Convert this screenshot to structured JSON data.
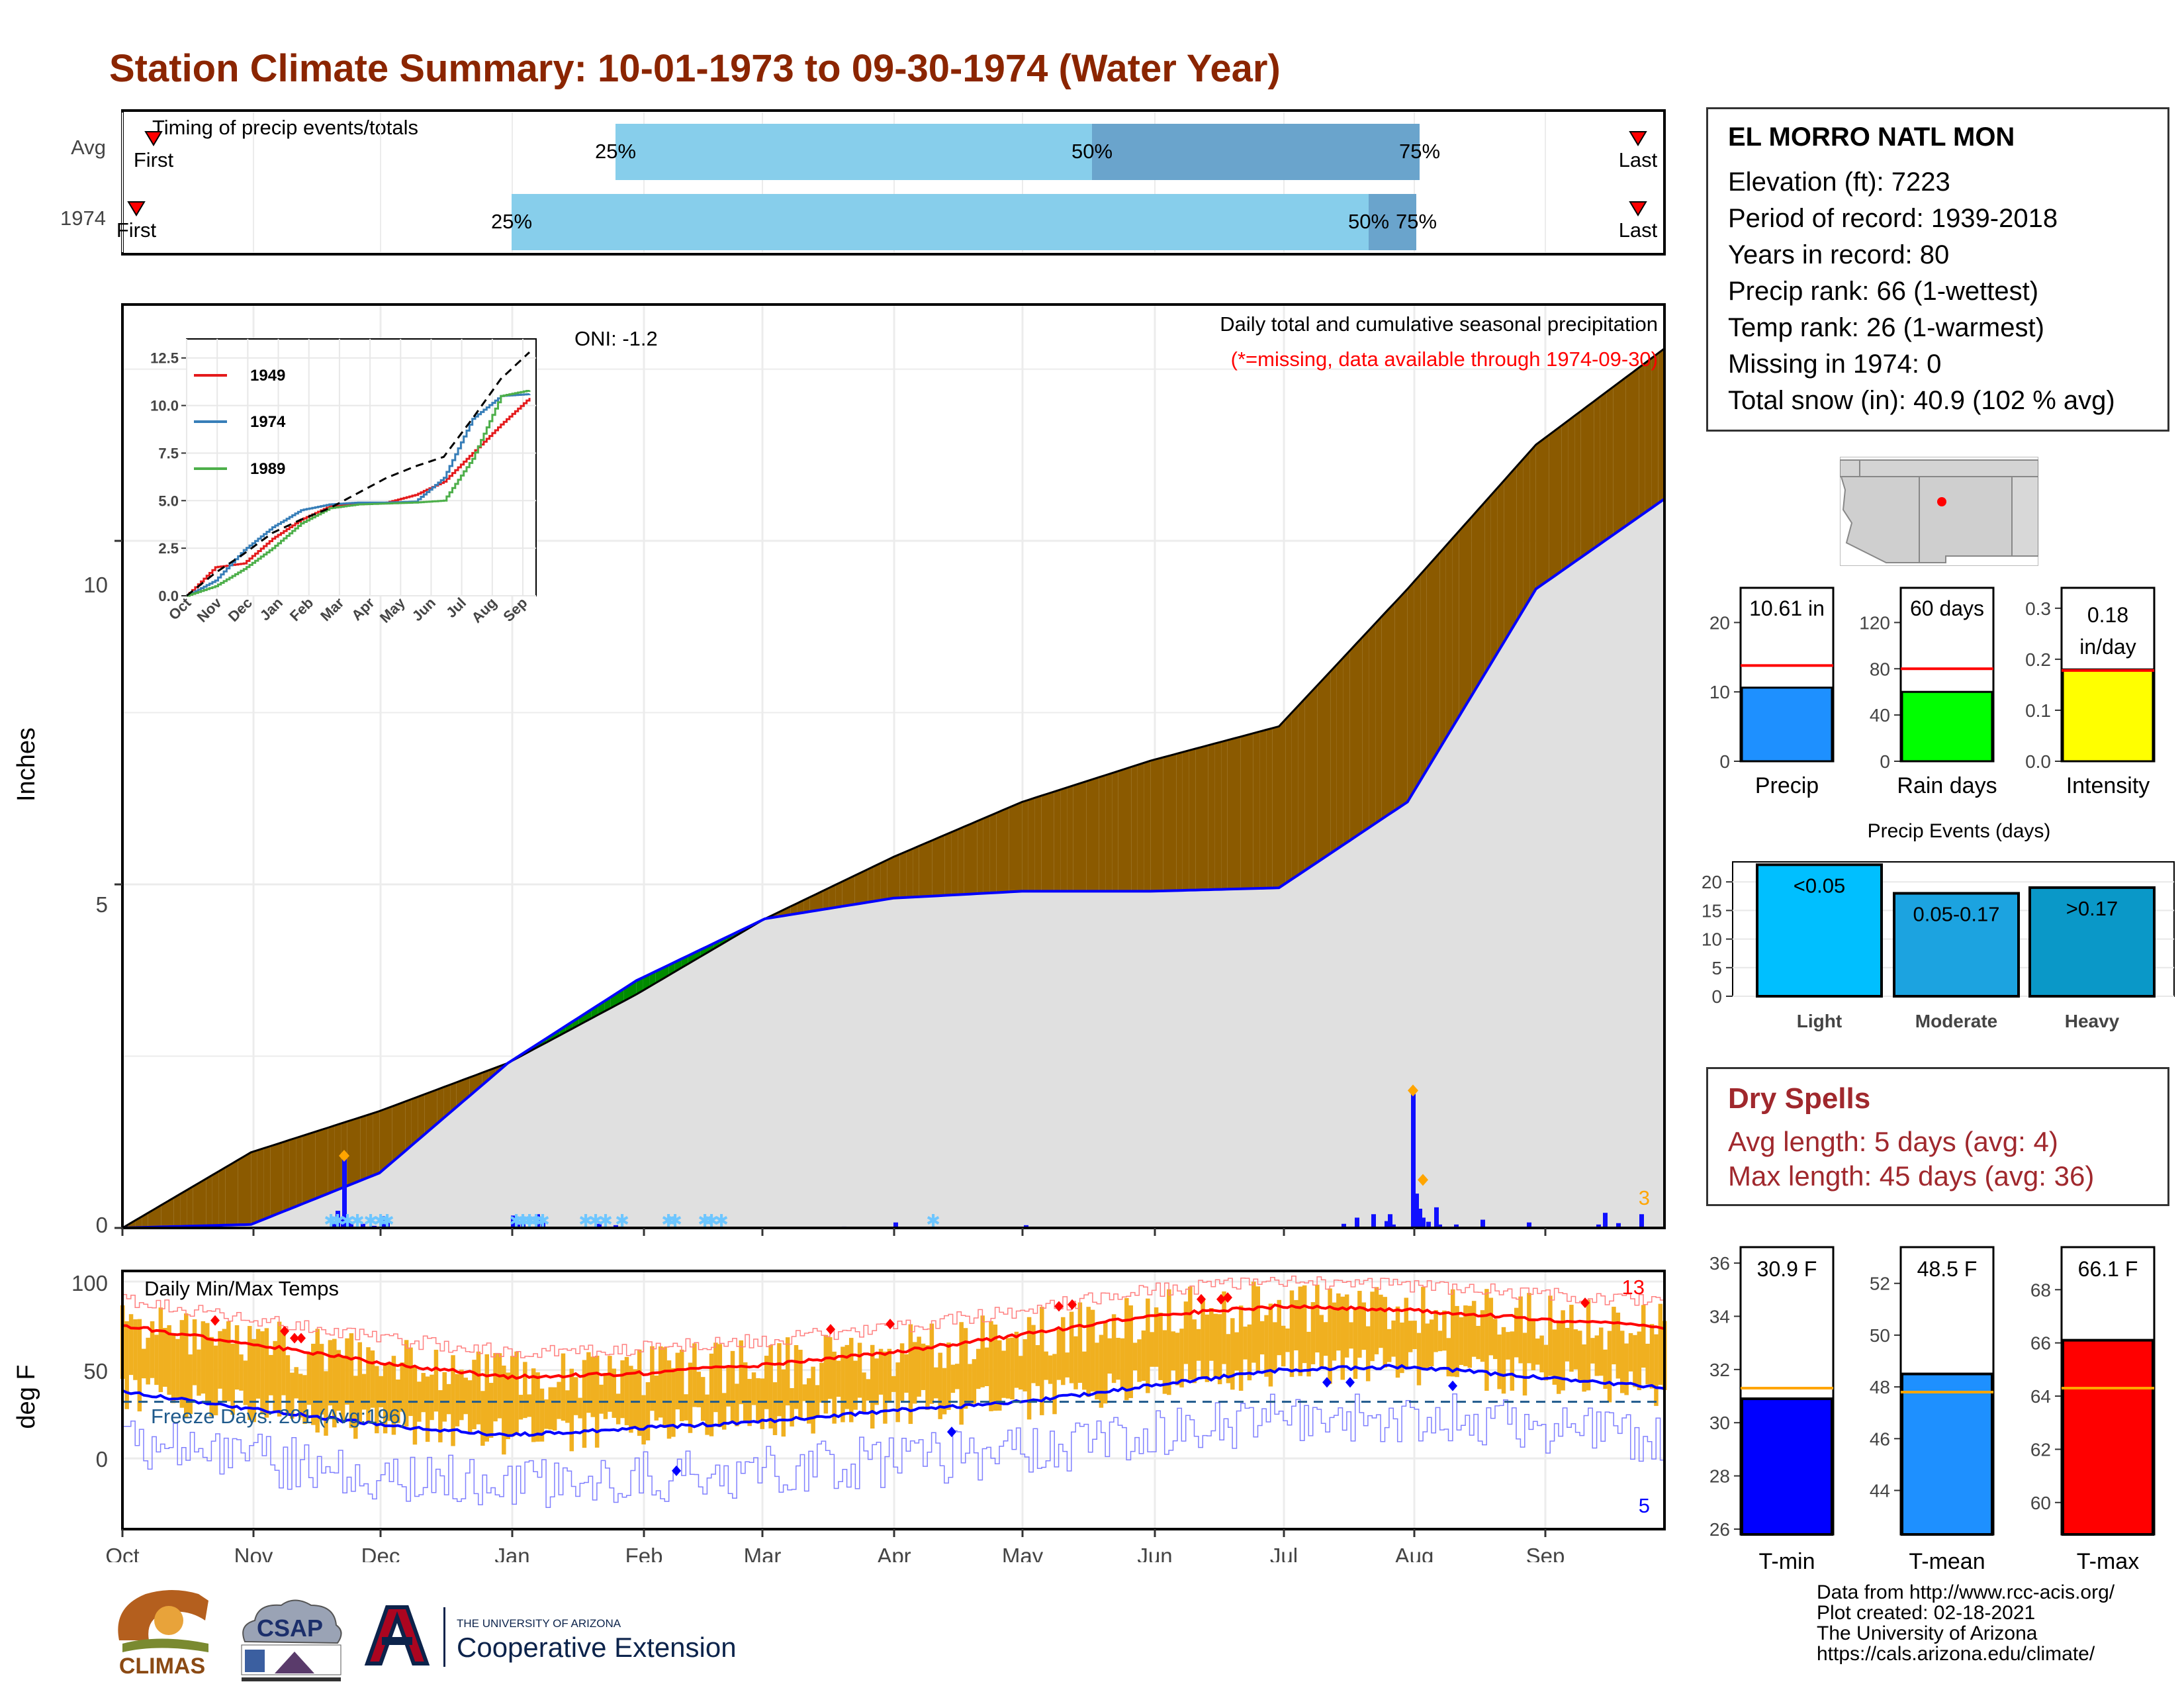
{
  "title": "Station Climate Summary: 10-01-1973 to 09-30-1974 (Water Year)",
  "colors": {
    "title": "#8b2500",
    "brown": "#8b5a00",
    "green": "#008b00",
    "blue_line": "#0000ff",
    "light_blue": "#87ceeb",
    "mid_blue": "#6aa4cc",
    "orange_bar": "#f0b020",
    "red": "#ff0000"
  },
  "timing": {
    "title": "Timing of precip events/totals",
    "rows": [
      {
        "label": "Avg",
        "first_label": "First",
        "last_label": "Last",
        "p25": "25%",
        "p50": "50%",
        "p75": "75%"
      },
      {
        "label": "1974",
        "first_label": "First",
        "last_label": "Last",
        "p25": "25%",
        "p50": "50%",
        "p75": "75%"
      }
    ]
  },
  "precip_panel": {
    "ylabel": "Inches",
    "yticks": [
      "0",
      "5",
      "10"
    ],
    "oni": "ONI: -1.2",
    "subtitle": "Daily total and cumulative seasonal precipitation",
    "missing_note": "(*=missing, data available through 1974-09-30)",
    "max_count_label": "3"
  },
  "inset": {
    "yticks": [
      "0.0",
      "2.5",
      "5.0",
      "7.5",
      "10.0",
      "12.5"
    ],
    "xticks": [
      "Oct",
      "Nov",
      "Dec",
      "Jan",
      "Feb",
      "Mar",
      "Apr",
      "May",
      "Jun",
      "Jul",
      "Aug",
      "Sep"
    ],
    "legend": [
      "1949",
      "1974",
      "1989"
    ]
  },
  "temp_panel": {
    "ylabel": "deg F",
    "yticks": [
      "0",
      "50",
      "100"
    ],
    "title": "Daily Min/Max Temps",
    "freeze_label": "Freeze Days: 201 (Avg:196)",
    "max_records": "13",
    "min_records": "5"
  },
  "months": [
    "Oct",
    "Nov",
    "Dec",
    "Jan",
    "Feb",
    "Mar",
    "Apr",
    "May",
    "Jun",
    "Jul",
    "Aug",
    "Sep"
  ],
  "station": {
    "name": "EL MORRO NATL MON",
    "lines": [
      "Elevation (ft): 7223",
      "Period of record: 1939-2018",
      "Years in record: 80",
      "Precip rank: 66 (1-wettest)",
      "Temp rank: 26 (1-warmest)",
      "Missing in 1974: 0",
      "Total snow (in): 40.9 (102 % avg)"
    ]
  },
  "summary_bars": [
    {
      "label": "Precip",
      "value_label": "10.61 in",
      "yticks": [
        "0",
        "10",
        "20"
      ]
    },
    {
      "label": "Rain days",
      "value_label": "60 days",
      "yticks": [
        "0",
        "40",
        "80",
        "120"
      ]
    },
    {
      "label": "Intensity",
      "value_label": "0.18",
      "value_label2": "in/day",
      "yticks": [
        "0.0",
        "0.1",
        "0.2",
        "0.3"
      ]
    }
  ],
  "events": {
    "title": "Precip Events (days)",
    "yticks": [
      "0",
      "5",
      "10",
      "15",
      "20"
    ],
    "bars": [
      {
        "label": "Light",
        "value_label": "<0.05"
      },
      {
        "label": "Moderate",
        "value_label": "0.05-0.17"
      },
      {
        "label": "Heavy",
        "value_label": ">0.17"
      }
    ]
  },
  "dry_spells": {
    "title": "Dry Spells",
    "avg": "Avg length: 5 days (avg: 4)",
    "max": "Max length: 45 days (avg: 36)"
  },
  "temp_bars": [
    {
      "label": "T-min",
      "value_label": "30.9 F",
      "yticks": [
        "26",
        "28",
        "30",
        "32",
        "34",
        "36"
      ]
    },
    {
      "label": "T-mean",
      "value_label": "48.5 F",
      "yticks": [
        "44",
        "46",
        "48",
        "50",
        "52"
      ]
    },
    {
      "label": "T-max",
      "value_label": "66.1 F",
      "yticks": [
        "60",
        "62",
        "64",
        "66",
        "68"
      ]
    }
  ],
  "footer": [
    "Data from http://www.rcc-acis.org/",
    "Plot created: 02-18-2021",
    "The University of Arizona",
    "https://cals.arizona.edu/climate/"
  ],
  "logos": {
    "climas": "CLIMAS",
    "csap": "CSAP",
    "ua_small": "THE UNIVERSITY OF ARIZONA",
    "ua_big": "Cooperative Extension"
  },
  "chart_data": [
    {
      "type": "area",
      "title": "Daily total and cumulative seasonal precipitation",
      "ylabel": "Inches",
      "ylim": [
        0,
        13
      ],
      "x": [
        "Oct",
        "Nov",
        "Dec",
        "Jan",
        "Feb",
        "Mar",
        "Apr",
        "May",
        "Jun",
        "Jul",
        "Aug",
        "Sep",
        "Sep 30"
      ],
      "series": [
        {
          "values": [
            0,
            1.1,
            1.7,
            2.4,
            3.4,
            4.5,
            5.4,
            6.2,
            6.8,
            7.3,
            9.3,
            11.4,
            12.8
          ]
        },
        {
          "values": [
            0,
            0.05,
            0.8,
            2.4,
            3.6,
            4.5,
            4.8,
            4.9,
            4.9,
            4.95,
            6.2,
            9.3,
            10.61
          ]
        }
      ]
    },
    {
      "type": "line",
      "ylim": [
        0,
        13
      ],
      "x": [
        "Oct",
        "Nov",
        "Dec",
        "Jan",
        "Feb",
        "Mar",
        "Apr",
        "May",
        "Jun",
        "Jul",
        "Aug",
        "Sep",
        "Sep 30"
      ],
      "series": [
        {
          "name": "1949",
          "values": [
            0,
            1.5,
            1.7,
            3.0,
            4.0,
            4.7,
            4.8,
            4.9,
            5.3,
            6.0,
            7.5,
            9.0,
            10.4
          ]
        },
        {
          "name": "1974",
          "values": [
            0,
            0.8,
            2.4,
            3.6,
            4.5,
            4.8,
            4.9,
            4.9,
            4.95,
            6.2,
            9.3,
            10.5,
            10.6
          ]
        },
        {
          "values": [
            0,
            0.5,
            1.4,
            2.5,
            3.8,
            4.6,
            4.8,
            4.85,
            4.9,
            5.0,
            7.2,
            10.5,
            10.8
          ]
        },
        {
          "name": "1989",
          "values": [
            0,
            1.2,
            2.2,
            3.3,
            4.0,
            4.6,
            5.4,
            6.2,
            6.8,
            7.3,
            9.3,
            11.4,
            12.8
          ]
        }
      ]
    },
    {
      "type": "bar",
      "title": "Daily Min/Max Temps",
      "ylabel": "deg F",
      "ylim": [
        -40,
        105
      ],
      "x": [
        "Oct",
        "Nov",
        "Dec",
        "Jan",
        "Feb",
        "Mar",
        "Apr",
        "May",
        "Jun",
        "Jul",
        "Aug",
        "Sep",
        "Sep 30"
      ],
      "series": [
        {
          "values": [
            75,
            65,
            54,
            46,
            48,
            53,
            60,
            70,
            81,
            86,
            84,
            79,
            74
          ]
        },
        {
          "values": [
            38,
            28,
            19,
            13,
            17,
            21,
            27,
            32,
            41,
            50,
            52,
            46,
            40
          ]
        }
      ]
    },
    {
      "type": "bar",
      "categories": [
        "Precip"
      ],
      "values": [
        10.61
      ],
      "ylim": [
        0,
        25
      ]
    },
    {
      "type": "bar",
      "categories": [
        "Rain days"
      ],
      "values": [
        60
      ],
      "ylim": [
        0,
        150
      ]
    },
    {
      "type": "bar",
      "categories": [
        "Intensity"
      ],
      "values": [
        0.18
      ],
      "ylim": [
        0,
        0.34
      ]
    },
    {
      "type": "bar",
      "title": "Precip Events (days)",
      "categories": [
        "Light",
        "Moderate",
        "Heavy"
      ],
      "values": [
        23,
        18,
        19
      ],
      "ylim": [
        0,
        23
      ]
    },
    {
      "type": "bar",
      "categories": [
        "T-min",
        "T-mean",
        "T-max"
      ],
      "values": [
        30.9,
        48.5,
        66.1
      ]
    }
  ]
}
